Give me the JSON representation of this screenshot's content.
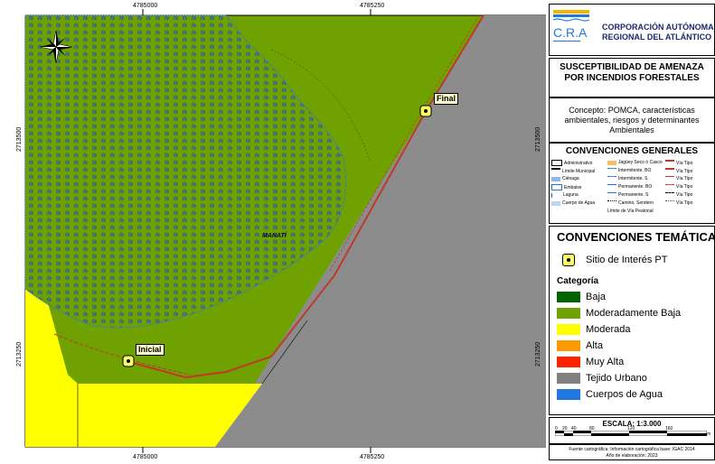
{
  "map": {
    "top_coords": [
      "4785000",
      "4785250"
    ],
    "bottom_coords": [
      "4785000",
      "4785250"
    ],
    "left_coords": [
      "2713500",
      "2713250"
    ],
    "right_coords": [
      "2713500",
      "2713250"
    ],
    "place_label": "MANATÍ",
    "point_final": "Final",
    "point_inicial": "Inicial",
    "colors": {
      "moderadamente_baja": "#6fa100",
      "moderada": "#ffff00",
      "tejido_urbano": "#8c8c8c",
      "water_pattern": "#2a5aa8"
    }
  },
  "org": {
    "name_line1": "CORPORACIÓN AUTÓNOMA",
    "name_line2": "REGIONAL DEL ATLÁNTICO",
    "logo_text": "C.R.A"
  },
  "title": {
    "line1": "SUSCEPTIBILIDAD DE AMENAZA",
    "line2": "POR INCENDIOS FORESTALES"
  },
  "concept": {
    "line1": "Concepto: POMCA, características",
    "line2": "ambientales, riesgos y determinantes",
    "line3": "Ambientales"
  },
  "general": {
    "title": "CONVENCIONES GENERALES",
    "items": [
      "Administrativo",
      "Límite Municipal",
      "Ciénaga",
      "Embalse",
      "Laguna",
      "Cuerpo de Agua",
      "Jagüey Seco ó Casco",
      "Intermitente. BO",
      "Intermitente. S",
      "Permanente. BO",
      "Permanente. S",
      "Camino, Sendero",
      "Vía Tipo",
      "Vía Tipo",
      "Vía Tipo",
      "Vía Tipo",
      "Vía Tipo",
      "Vía Tipo",
      "Límite de Vía Peatonal"
    ]
  },
  "thematic": {
    "title": "CONVENCIONES TEMÁTICAS",
    "point_label": "Sitio de Interés PT",
    "category_title": "Categoría",
    "categories": [
      {
        "label": "Baja",
        "color": "#006400"
      },
      {
        "label": "Moderadamente Baja",
        "color": "#6fa100"
      },
      {
        "label": "Moderada",
        "color": "#ffff00"
      },
      {
        "label": "Alta",
        "color": "#ff9900"
      },
      {
        "label": "Muy Alta",
        "color": "#ff2200"
      },
      {
        "label": "Tejido Urbano",
        "color": "#808080"
      },
      {
        "label": "Cuerpos de Agua",
        "color": "#1f77e0"
      }
    ]
  },
  "scale": {
    "title": "ESCALA: 1:3.000",
    "ticks": [
      "0",
      "20",
      "40",
      "80",
      "120",
      "160"
    ],
    "unit": "m"
  },
  "source": {
    "line1": "Fuente cartográfica: Información cartográfica base: IGAC 2014",
    "line2": "Año de elaboración: 2023"
  }
}
